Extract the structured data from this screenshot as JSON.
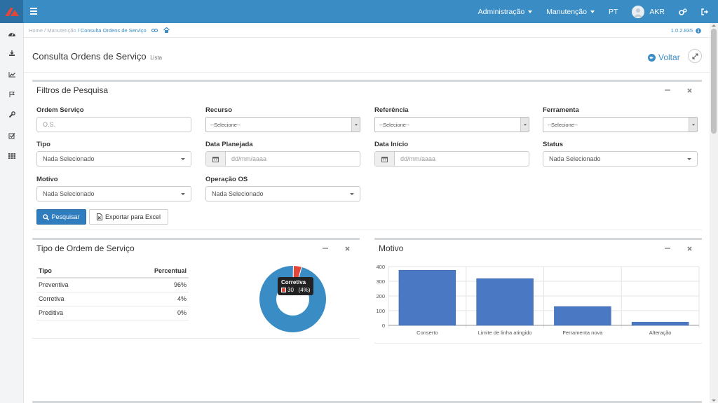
{
  "topbar": {
    "nav": [
      {
        "label": "Administração",
        "dropdown": true
      },
      {
        "label": "Manutenção",
        "dropdown": true
      },
      {
        "label": "PT",
        "dropdown": false
      }
    ],
    "user": "AKR",
    "colors": {
      "bar": "#3a8cc5",
      "logo_bg": "#2c6fa3",
      "logo": "#e2473a"
    }
  },
  "sidebar": {
    "icons": [
      "dashboard-icon",
      "download-icon",
      "line-chart-icon",
      "flag-icon",
      "wrench-icon",
      "checkbox-icon",
      "grid-icon"
    ]
  },
  "breadcrumb": {
    "home": "Home",
    "sep1": " / ",
    "section": "Manutenção",
    "sep2": " / ",
    "current": "Consulta Ordens de Serviço",
    "version": "1.0.2.835"
  },
  "page": {
    "title": "Consulta Ordens de Serviço",
    "subtitle": "Lista",
    "back_label": "Voltar"
  },
  "filters": {
    "title": "Filtros de Pesquisa",
    "ordem_servico": {
      "label": "Ordem Serviço",
      "placeholder": "O.S."
    },
    "recurso": {
      "label": "Recurso",
      "value": "--Selecione--"
    },
    "referencia": {
      "label": "Referência",
      "value": "--Selecione--"
    },
    "ferramenta": {
      "label": "Ferramenta",
      "value": "--Selecione--"
    },
    "tipo": {
      "label": "Tipo",
      "value": "Nada Selecionado"
    },
    "data_planejada": {
      "label": "Data Planejada",
      "placeholder": "dd/mm/aaaa"
    },
    "data_inicio": {
      "label": "Data Início",
      "placeholder": "dd/mm/aaaa"
    },
    "status": {
      "label": "Status",
      "value": "Nada Selecionado"
    },
    "motivo": {
      "label": "Motivo",
      "value": "Nada Selecionado"
    },
    "operacao_os": {
      "label": "Operação OS",
      "value": "Nada Selecionado"
    },
    "search_label": "Pesquisar",
    "export_label": "Exportar para Excel"
  },
  "tipo_panel": {
    "title": "Tipo de Ordem de Serviço",
    "headers": {
      "tipo": "Tipo",
      "percentual": "Percentual"
    },
    "rows": [
      {
        "tipo": "Preventiva",
        "percentual": "96%"
      },
      {
        "tipo": "Corretiva",
        "percentual": "4%"
      },
      {
        "tipo": "Preditiva",
        "percentual": "0%"
      }
    ],
    "tooltip": {
      "title": "Corretiva",
      "value": "30",
      "pct": "(4%)"
    }
  },
  "motivo_panel": {
    "title": "Motivo"
  },
  "chart_data": [
    {
      "type": "pie",
      "title": "",
      "labels": [
        "Preventiva",
        "Corretiva",
        "Preditiva"
      ],
      "values": [
        96,
        4,
        0
      ],
      "colors": [
        "#3a8cc5",
        "#e2473a",
        "#8fbf3a"
      ],
      "donut": true
    },
    {
      "type": "bar",
      "title": "",
      "categories": [
        "Conserto",
        "Limite de linha atingido",
        "Ferramenta nova",
        "Alteração"
      ],
      "values": [
        375,
        318,
        128,
        22
      ],
      "ylim": [
        0,
        400
      ],
      "yticks": [
        0,
        100,
        200,
        300,
        400
      ],
      "grid": true,
      "color": "#4a78c2"
    }
  ]
}
